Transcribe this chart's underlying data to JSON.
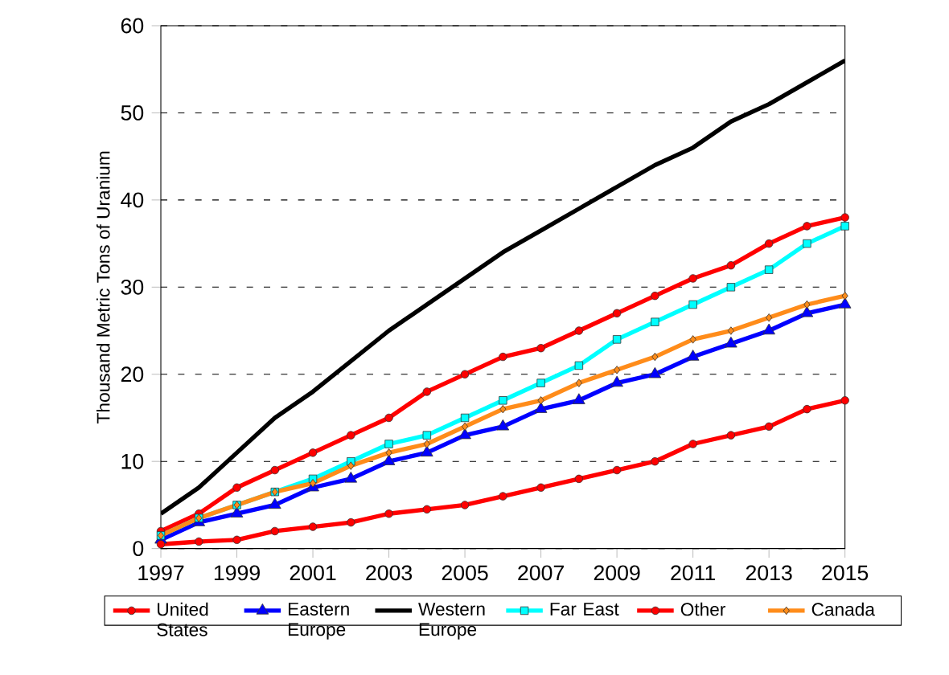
{
  "chart_data": {
    "type": "line",
    "ylabel": "Thousand Metric Tons of Uranium",
    "x": [
      1997,
      1998,
      1999,
      2000,
      2001,
      2002,
      2003,
      2004,
      2005,
      2006,
      2007,
      2008,
      2009,
      2010,
      2011,
      2012,
      2013,
      2014,
      2015
    ],
    "xlim": [
      1997,
      2015
    ],
    "xticks": [
      1997,
      1999,
      2001,
      2003,
      2005,
      2007,
      2009,
      2011,
      2013,
      2015
    ],
    "ylim": [
      0,
      60
    ],
    "yticks": [
      0,
      10,
      20,
      30,
      40,
      50,
      60
    ],
    "grid": "y",
    "legend": "bottom",
    "series": [
      {
        "name": "United States",
        "color": "#ff0000",
        "marker": "circle",
        "values": [
          2,
          4,
          7,
          9,
          11,
          13,
          15,
          18,
          20,
          22,
          23,
          25,
          27,
          29,
          31,
          32.5,
          35,
          37,
          38
        ]
      },
      {
        "name": "Eastern Europe",
        "color": "#0000ff",
        "marker": "triangle",
        "values": [
          1,
          3,
          4,
          5,
          7,
          8,
          10,
          11,
          13,
          14,
          16,
          17,
          19,
          20,
          22,
          23.5,
          25,
          27,
          28
        ]
      },
      {
        "name": "Western Europe",
        "color": "#000000",
        "marker": "none",
        "values": [
          4,
          7,
          11,
          15,
          18,
          21.5,
          25,
          28,
          31,
          34,
          36.5,
          39,
          41.5,
          44,
          46,
          49,
          51,
          53.5,
          56
        ]
      },
      {
        "name": "Far East",
        "color": "#00ffff",
        "marker": "square",
        "values": [
          1.5,
          3.5,
          5,
          6.5,
          8,
          10,
          12,
          13,
          15,
          17,
          19,
          21,
          24,
          26,
          28,
          30,
          32,
          35,
          37
        ]
      },
      {
        "name": "Other",
        "color": "#ff0000",
        "marker": "circle",
        "values": [
          0.5,
          0.8,
          1,
          2,
          2.5,
          3,
          4,
          4.5,
          5,
          6,
          7,
          8,
          9,
          10,
          12,
          13,
          14,
          16,
          17
        ]
      },
      {
        "name": "Canada",
        "color": "#ff8c1a",
        "marker": "diamond",
        "values": [
          1.5,
          3.5,
          5,
          6.5,
          7.5,
          9.5,
          11,
          12,
          14,
          16,
          17,
          19,
          20.5,
          22,
          24,
          25,
          26.5,
          28,
          29
        ]
      }
    ]
  }
}
